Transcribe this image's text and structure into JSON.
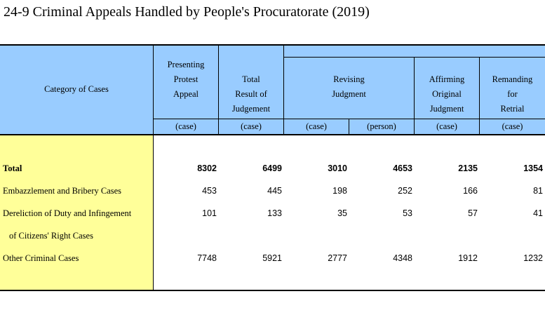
{
  "title": "24-9  Criminal Appeals Handled by People's Procuratorate (2019)",
  "headers": {
    "category": "Category of Cases",
    "presenting": [
      "Presenting",
      "Protest",
      "Appeal"
    ],
    "total_result": [
      "Total",
      "Result of",
      "Judgement"
    ],
    "revising": [
      "Revising",
      "Judgment"
    ],
    "affirming": [
      "Affirming",
      "Original",
      "Judgment"
    ],
    "remanding": [
      "Remanding",
      "for",
      "Retrial"
    ]
  },
  "units": [
    "(case)",
    "(case)",
    "(case)",
    "(person)",
    "(case)",
    "(case)"
  ],
  "rows": [
    {
      "label": "Total",
      "values": [
        "8302",
        "6499",
        "3010",
        "4653",
        "2135",
        "1354"
      ]
    },
    {
      "label": "Embazzlement and Bribery Cases",
      "values": [
        "453",
        "445",
        "198",
        "252",
        "166",
        "81"
      ]
    },
    {
      "label": "Dereliction of Duty and Infingement",
      "values": [
        "101",
        "133",
        "35",
        "53",
        "57",
        "41"
      ]
    },
    {
      "label": "of Citizens' Right Cases",
      "values": []
    },
    {
      "label": "Other Criminal Cases",
      "values": [
        "7748",
        "5921",
        "2777",
        "4348",
        "1912",
        "1232"
      ]
    }
  ]
}
